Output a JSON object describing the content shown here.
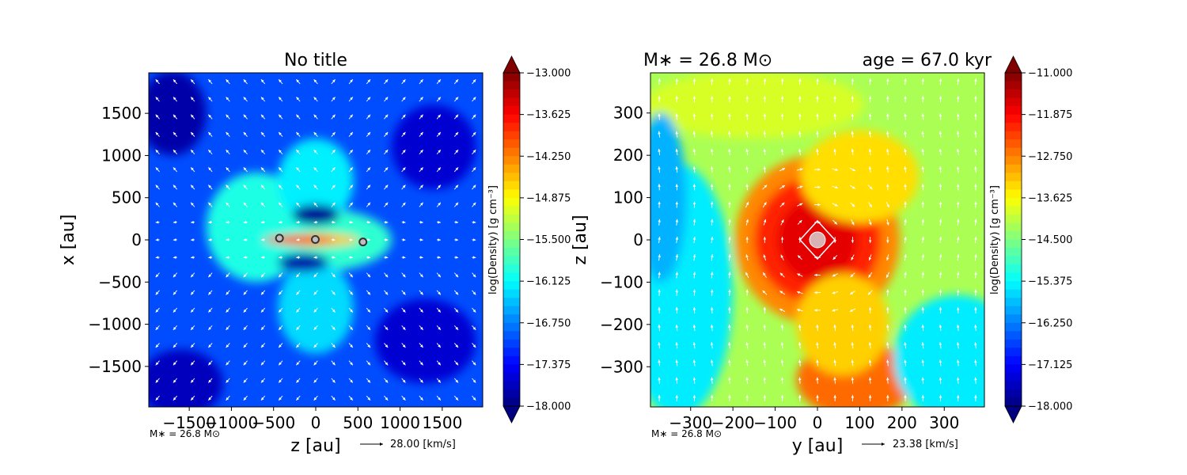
{
  "chart_data": [
    {
      "type": "heatmap",
      "title": "No title",
      "xlabel": "z [au]",
      "ylabel": "x [au]",
      "xlim": [
        -1980,
        1980
      ],
      "ylim": [
        -1980,
        1980
      ],
      "xticks": [
        -1500,
        -1000,
        -500,
        0,
        500,
        1000,
        1500
      ],
      "xtick_labels": [
        "−1500",
        "−1000",
        "−500",
        "0",
        "500",
        "1000",
        "1500"
      ],
      "yticks": [
        -1500,
        -1000,
        -500,
        0,
        500,
        1000,
        1500
      ],
      "ytick_labels": [
        "−1500",
        "−1000",
        "−500",
        "0",
        "500",
        "1000",
        "1500"
      ],
      "colorbar": {
        "label": "log(Density) [g cm⁻³]",
        "range": [
          -18.0,
          -13.0
        ],
        "ticks": [
          "−13.000",
          "−13.625",
          "−14.250",
          "−14.875",
          "−15.500",
          "−16.125",
          "−16.750",
          "−17.375",
          "−18.000"
        ],
        "colormap": "jet",
        "extend": "both"
      },
      "features": [
        {
          "kind": "blob",
          "x": 0,
          "y": 0,
          "rx": 900,
          "ry": 380,
          "value": -15.9
        },
        {
          "kind": "blob",
          "x": -700,
          "y": 150,
          "rx": 600,
          "ry": 650,
          "value": -16.0
        },
        {
          "kind": "blob",
          "x": 0,
          "y": 700,
          "rx": 450,
          "ry": 500,
          "value": -16.2
        },
        {
          "kind": "blob",
          "x": 0,
          "y": -800,
          "rx": 450,
          "ry": 550,
          "value": -16.3
        },
        {
          "kind": "blob",
          "x": 0,
          "y": 0,
          "rx": 520,
          "ry": 75,
          "value": -14.6
        },
        {
          "kind": "blob",
          "x": -200,
          "y": 0,
          "rx": 420,
          "ry": 50,
          "value": -13.8
        },
        {
          "kind": "blob",
          "x": 0,
          "y": 300,
          "rx": 280,
          "ry": 120,
          "value": -17.9
        },
        {
          "kind": "blob",
          "x": -150,
          "y": -270,
          "rx": 300,
          "ry": 110,
          "value": -17.8
        },
        {
          "kind": "blob",
          "x": 1400,
          "y": 1100,
          "rx": 500,
          "ry": 500,
          "value": -17.6
        },
        {
          "kind": "blob",
          "x": 1300,
          "y": -1200,
          "rx": 600,
          "ry": 500,
          "value": -17.6
        },
        {
          "kind": "blob",
          "x": -1700,
          "y": 1500,
          "rx": 400,
          "ry": 500,
          "value": -17.8
        },
        {
          "kind": "blob",
          "x": -1600,
          "y": -1700,
          "rx": 500,
          "ry": 400,
          "value": -17.7
        }
      ],
      "background_value": -17.0,
      "sinks": [
        {
          "x": -430,
          "y": 20
        },
        {
          "x": -5,
          "y": 5
        },
        {
          "x": 560,
          "y": -25
        }
      ],
      "vector_key": {
        "label": "28.00 [km/s]"
      },
      "annotation": "M∗ = 26.8 M⊙"
    },
    {
      "type": "heatmap",
      "title": "M∗ = 26.8 M⊙",
      "title_right": "age = 67.0 kyr",
      "xlabel": "y [au]",
      "ylabel": "z [au]",
      "xlim": [
        -395,
        395
      ],
      "ylim": [
        -395,
        395
      ],
      "xticks": [
        -300,
        -200,
        -100,
        0,
        100,
        200,
        300
      ],
      "xtick_labels": [
        "−300",
        "−200",
        "−100",
        "0",
        "100",
        "200",
        "300"
      ],
      "yticks": [
        -300,
        -200,
        -100,
        0,
        100,
        200,
        300
      ],
      "ytick_labels": [
        "−300",
        "−200",
        "−100",
        "0",
        "100",
        "200",
        "300"
      ],
      "colorbar": {
        "label": "log(Density) [g cm⁻³]",
        "range": [
          -18.0,
          -11.0
        ],
        "ticks": [
          "−11.000",
          "−11.875",
          "−12.750",
          "−13.625",
          "−14.500",
          "−15.375",
          "−16.250",
          "−17.125",
          "−18.000"
        ],
        "colormap": "jet",
        "extend": "both"
      },
      "features": [
        {
          "kind": "blob",
          "x": 0,
          "y": 0,
          "rx": 195,
          "ry": 200,
          "value": -12.8
        },
        {
          "kind": "blob",
          "x": 0,
          "y": 0,
          "rx": 150,
          "ry": 150,
          "value": -12.1
        },
        {
          "kind": "blob",
          "x": 0,
          "y": 0,
          "rx": 95,
          "ry": 100,
          "value": -11.7
        },
        {
          "kind": "blob",
          "x": 90,
          "y": -330,
          "rx": 140,
          "ry": 90,
          "value": -12.6
        },
        {
          "kind": "blob",
          "x": 60,
          "y": -200,
          "rx": 110,
          "ry": 120,
          "value": -13.3
        },
        {
          "kind": "blob",
          "x": 100,
          "y": 150,
          "rx": 140,
          "ry": 110,
          "value": -13.4
        },
        {
          "kind": "blob",
          "x": -150,
          "y": 320,
          "rx": 260,
          "ry": 80,
          "value": -13.9
        },
        {
          "kind": "blob",
          "x": -330,
          "y": -120,
          "rx": 130,
          "ry": 300,
          "value": -15.5
        },
        {
          "kind": "blob",
          "x": 330,
          "y": -280,
          "rx": 150,
          "ry": 150,
          "value": -15.5
        },
        {
          "kind": "blob",
          "x": -370,
          "y": 100,
          "rx": 60,
          "ry": 200,
          "value": -15.9
        }
      ],
      "background_value": -14.2,
      "sinks": [
        {
          "x": 0,
          "y": 0
        }
      ],
      "vector_key": {
        "label": "23.38 [km/s]"
      },
      "annotation": "M∗ = 26.8 M⊙"
    }
  ]
}
